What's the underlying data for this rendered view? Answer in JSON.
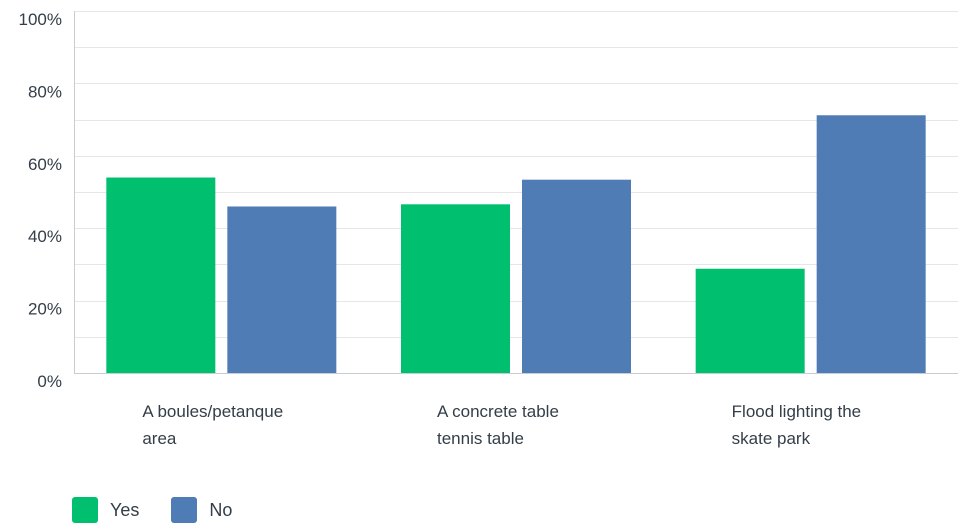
{
  "colors": {
    "yes": "#00bf6f",
    "no": "#507cb6",
    "grid": "#e6e6e6",
    "axis": "#c9cdd1",
    "text": "#333e48"
  },
  "legend": {
    "yes_label": "Yes",
    "no_label": "No"
  },
  "chart_data": {
    "type": "bar",
    "categories": [
      [
        "A boules/petanque",
        "area"
      ],
      [
        "A concrete table",
        "tennis table"
      ],
      [
        "Flood lighting the",
        "skate park"
      ]
    ],
    "series": [
      {
        "name": "Yes",
        "values": [
          54.0,
          46.6,
          28.8
        ]
      },
      {
        "name": "No",
        "values": [
          46.0,
          53.4,
          71.2
        ]
      }
    ],
    "yticks": [
      "0%",
      "20%",
      "40%",
      "60%",
      "80%",
      "100%"
    ],
    "ylim": [
      0,
      100
    ],
    "grid": true,
    "legend_position": "bottom-left"
  }
}
